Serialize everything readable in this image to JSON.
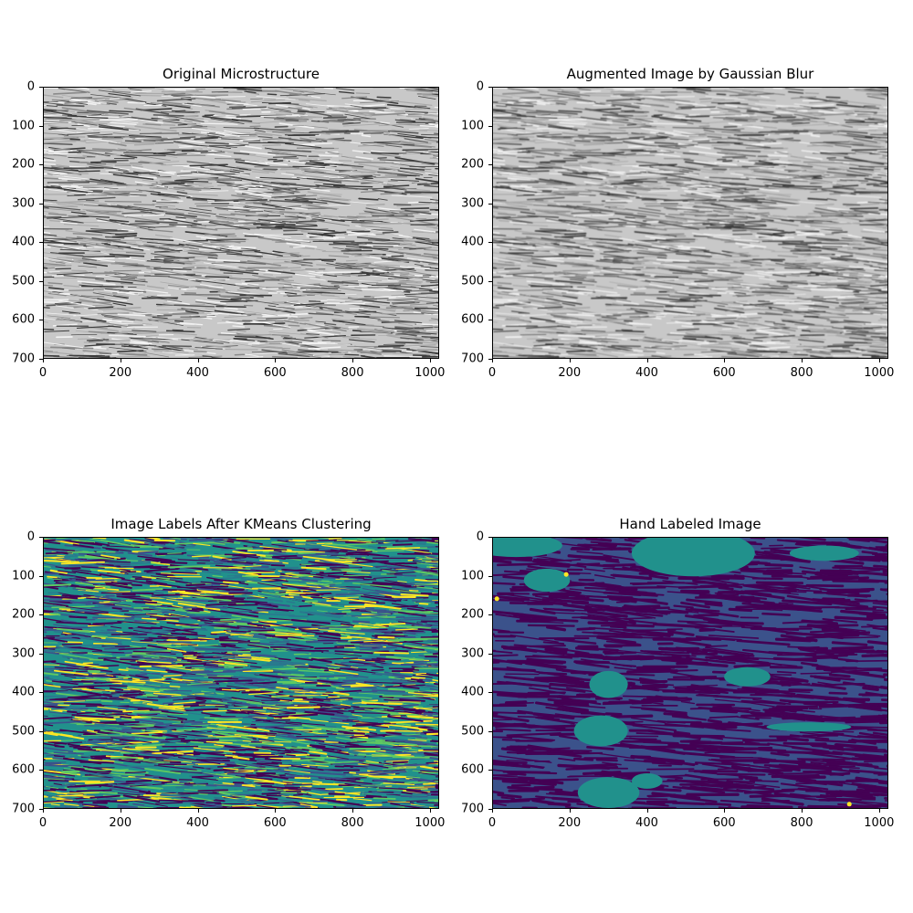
{
  "figure": {
    "panels": [
      {
        "title": "Original Microstructure",
        "kind": "grayscale"
      },
      {
        "title": "Augmented Image by Gaussian Blur",
        "kind": "grayscale_blur"
      },
      {
        "title": "Image Labels After KMeans Clustering",
        "kind": "kmeans"
      },
      {
        "title": "Hand Labeled Image",
        "kind": "hand"
      }
    ],
    "x_ticks": [
      "0",
      "200",
      "400",
      "600",
      "800",
      "1000"
    ],
    "y_ticks": [
      "0",
      "100",
      "200",
      "300",
      "400",
      "500",
      "600",
      "700"
    ],
    "x_range": [
      0,
      1024
    ],
    "y_range": [
      0,
      700
    ],
    "colors": {
      "viridis_dark": "#440154",
      "viridis_blue": "#3b528b",
      "viridis_teal": "#21918c",
      "viridis_green": "#5ec962",
      "viridis_yellow": "#fde725",
      "gray_light": "#c8c8c8",
      "gray_dark": "#3c3c3c"
    }
  }
}
